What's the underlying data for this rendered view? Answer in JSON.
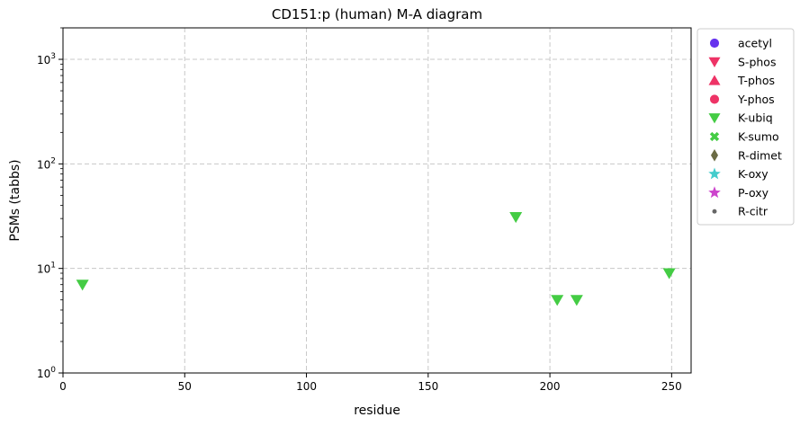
{
  "chart_data": {
    "type": "scatter",
    "title": "CD151:p (human) M-A diagram",
    "xlabel": "residue",
    "ylabel": "PSMs (tabbs)",
    "xlim": [
      0,
      258
    ],
    "ylim": [
      1,
      2000
    ],
    "yscale": "log",
    "grid": true,
    "legend_position": "outside-right",
    "x_ticks": [
      0,
      50,
      100,
      150,
      200,
      250
    ],
    "x_tick_labels": [
      "0",
      "50",
      "100",
      "150",
      "200",
      "250"
    ],
    "y_ticks": [
      1,
      10,
      100,
      1000
    ],
    "y_tick_labels": [
      {
        "base": "10",
        "exp": "0"
      },
      {
        "base": "10",
        "exp": "1"
      },
      {
        "base": "10",
        "exp": "2"
      },
      {
        "base": "10",
        "exp": "3"
      }
    ],
    "series": [
      {
        "name": "acetyl",
        "marker": "circle",
        "color": "#6633ee",
        "points": []
      },
      {
        "name": "S-phos",
        "marker": "triangle-down",
        "color": "#ee3366",
        "points": []
      },
      {
        "name": "T-phos",
        "marker": "triangle-up",
        "color": "#ee3366",
        "points": []
      },
      {
        "name": "Y-phos",
        "marker": "circle",
        "color": "#ee3366",
        "points": []
      },
      {
        "name": "K-ubiq",
        "marker": "triangle-down",
        "color": "#44cc44",
        "points": [
          {
            "x": 8,
            "y": 7
          },
          {
            "x": 186,
            "y": 31
          },
          {
            "x": 203,
            "y": 5
          },
          {
            "x": 211,
            "y": 5
          },
          {
            "x": 249,
            "y": 9
          }
        ]
      },
      {
        "name": "K-sumo",
        "marker": "x-cross",
        "color": "#44cc44",
        "points": []
      },
      {
        "name": "R-dimet",
        "marker": "diamond",
        "color": "#6b6b44",
        "points": []
      },
      {
        "name": "K-oxy",
        "marker": "star",
        "color": "#44cccc",
        "points": []
      },
      {
        "name": "P-oxy",
        "marker": "star",
        "color": "#cc44cc",
        "points": []
      },
      {
        "name": "R-citr",
        "marker": "dot",
        "color": "#666666",
        "points": []
      }
    ]
  }
}
